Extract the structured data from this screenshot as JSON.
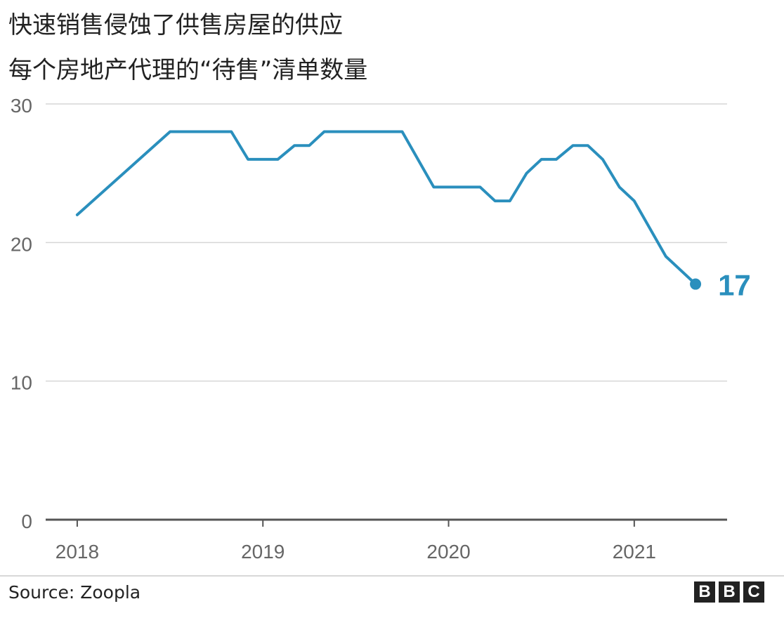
{
  "chart_data": {
    "type": "line",
    "title": "快速销售侵蚀了供售房屋的供应",
    "subtitle": "每个房地产代理的“待售”清单数量",
    "xlabel": "",
    "ylabel": "",
    "x_ticks": [
      "2018",
      "2019",
      "2020",
      "2021"
    ],
    "y_ticks": [
      0,
      10,
      20,
      30
    ],
    "ylim": [
      0,
      30
    ],
    "xlim": [
      2017.83,
      2021.5
    ],
    "grid": true,
    "series": [
      {
        "name": "",
        "color": "#2a8fbd",
        "x": [
          2018.0,
          2018.5,
          2018.83,
          2018.92,
          2019.08,
          2019.17,
          2019.25,
          2019.33,
          2019.75,
          2019.92,
          2020.17,
          2020.25,
          2020.33,
          2020.42,
          2020.5,
          2020.58,
          2020.67,
          2020.75,
          2020.83,
          2020.92,
          2021.0,
          2021.17,
          2021.33
        ],
        "values": [
          22,
          28,
          28,
          26,
          26,
          27,
          27,
          28,
          28,
          24,
          24,
          23,
          23,
          25,
          26,
          26,
          27,
          27,
          26,
          24,
          23,
          19,
          17
        ]
      }
    ],
    "end_label": "17"
  },
  "source": "Source: Zoopla",
  "logo": [
    "B",
    "B",
    "C"
  ]
}
